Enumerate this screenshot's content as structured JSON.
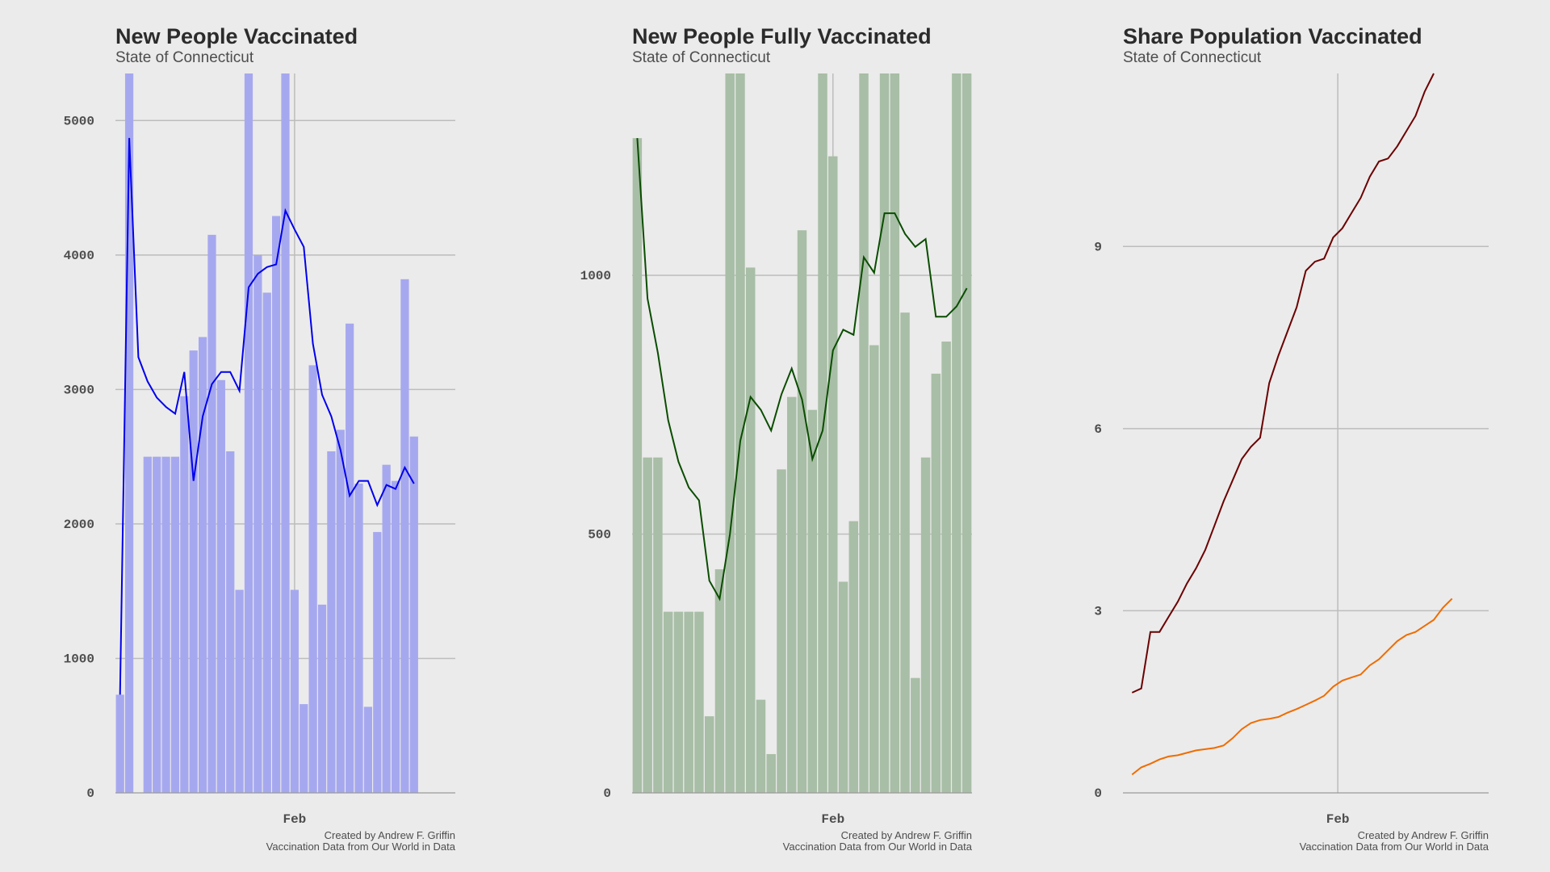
{
  "chart_data": [
    {
      "type": "bar",
      "title": "New People Vaccinated",
      "subtitle": "State of Connecticut",
      "x_tick_label": "Feb",
      "caption_line1": "Created by Andrew F. Griffin",
      "caption_line2": "Vaccination Data from Our World in Data",
      "ylim": [
        0,
        5350
      ],
      "yticks": [
        0,
        1000,
        2000,
        3000,
        4000,
        5000
      ],
      "bar_color": "#a6a8ef",
      "line_color": "#0000ee",
      "x_start": 0,
      "x_end": 37,
      "feb_index": 19.5,
      "values": [
        730,
        5350,
        null,
        2500,
        2500,
        2500,
        2500,
        2950,
        3290,
        3390,
        4150,
        3070,
        2540,
        1510,
        5350,
        4000,
        3720,
        4290,
        5350,
        1510,
        660,
        3180,
        1400,
        2540,
        2700,
        3490,
        2300,
        640,
        1940,
        2440,
        2320,
        3820,
        2650
      ],
      "line": [
        730,
        4870,
        3240,
        3060,
        2940,
        2870,
        2820,
        3130,
        2320,
        2800,
        3040,
        3130,
        3130,
        2990,
        3760,
        3860,
        3910,
        3930,
        4330,
        4190,
        4060,
        3340,
        2960,
        2800,
        2550,
        2210,
        2320,
        2320,
        2140,
        2290,
        2260,
        2420,
        2300
      ]
    },
    {
      "type": "bar",
      "title": "New People Fully Vaccinated",
      "subtitle": "State of Connecticut",
      "x_tick_label": "Feb",
      "caption_line1": "Created by Andrew F. Griffin",
      "caption_line2": "Vaccination Data from Our World in Data",
      "ylim": [
        0,
        1390
      ],
      "yticks": [
        0,
        500,
        1000
      ],
      "bar_color": "#a8bea6",
      "line_color": "#0a4d00",
      "x_start": 0,
      "x_end": 33,
      "feb_index": 19.5,
      "values": [
        1265,
        648,
        648,
        350,
        350,
        350,
        350,
        148,
        432,
        1390,
        1390,
        1015,
        180,
        75,
        625,
        765,
        1087,
        740,
        1390,
        1230,
        408,
        525,
        1390,
        865,
        1390,
        1390,
        928,
        222,
        648,
        810,
        872,
        1390,
        1390
      ],
      "line": [
        1265,
        955,
        850,
        720,
        640,
        590,
        565,
        410,
        375,
        500,
        680,
        765,
        740,
        700,
        770,
        820,
        760,
        645,
        700,
        855,
        895,
        885,
        1035,
        1005,
        1120,
        1120,
        1080,
        1055,
        1070,
        920,
        920,
        940,
        975
      ]
    },
    {
      "type": "line",
      "title": "Share Population Vaccinated",
      "subtitle": "State of Connecticut",
      "x_tick_label": "Feb",
      "caption_line1": "Created by Andrew F. Griffin",
      "caption_line2": "Vaccination Data from Our World in Data",
      "ylim": [
        0,
        11.85
      ],
      "yticks": [
        0,
        3,
        6,
        9
      ],
      "x_start": -1,
      "x_end": 39,
      "feb_index": 22.5,
      "series": [
        {
          "color": "#6b0000",
          "values": [
            1.65,
            1.72,
            2.65,
            2.65,
            2.9,
            3.15,
            3.45,
            3.7,
            4.0,
            4.4,
            4.8,
            5.15,
            5.5,
            5.7,
            5.85,
            6.75,
            7.2,
            7.6,
            8.0,
            8.6,
            8.75,
            8.8,
            9.15,
            9.3,
            9.55,
            9.8,
            10.15,
            10.4,
            10.45,
            10.65,
            10.9,
            11.15,
            11.55,
            11.85
          ]
        },
        {
          "color": "#ef6c00",
          "values": [
            0.3,
            0.42,
            0.48,
            0.55,
            0.6,
            0.62,
            0.66,
            0.7,
            0.72,
            0.74,
            0.78,
            0.9,
            1.05,
            1.15,
            1.2,
            1.22,
            1.25,
            1.32,
            1.38,
            1.45,
            1.52,
            1.6,
            1.75,
            1.85,
            1.9,
            1.95,
            2.1,
            2.2,
            2.35,
            2.5,
            2.6,
            2.65,
            2.75,
            2.85,
            3.05,
            3.2
          ]
        }
      ]
    }
  ]
}
